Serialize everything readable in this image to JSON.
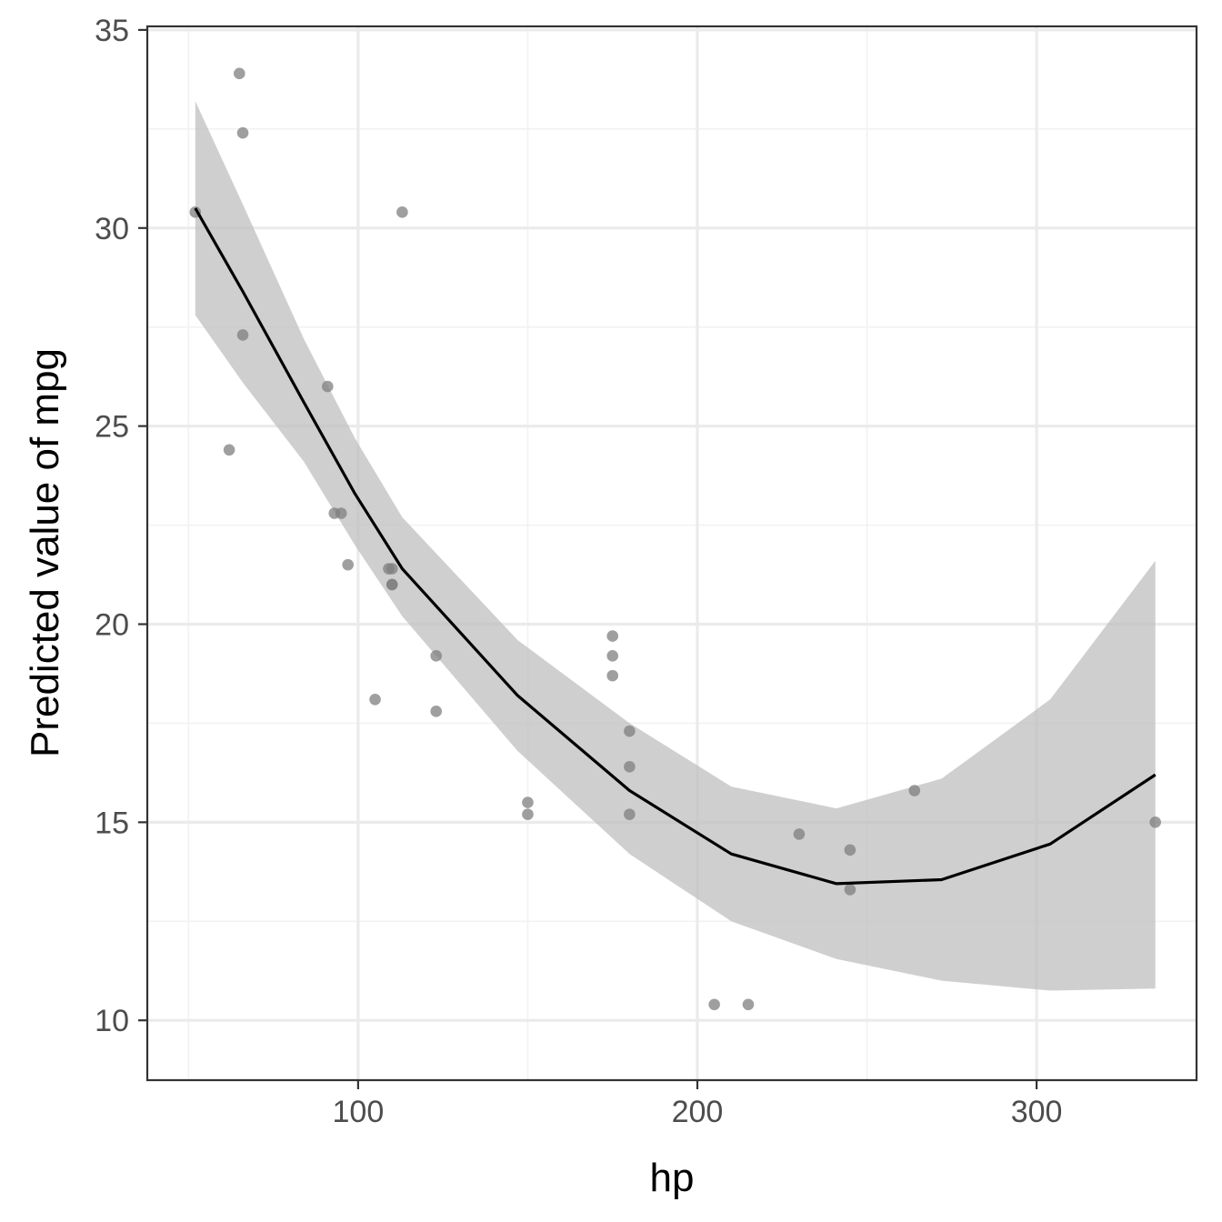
{
  "chart_data": {
    "type": "line",
    "title": "",
    "xlabel": "hp",
    "ylabel": "Predicted value of mpg",
    "xlim": [
      37.85,
      347.15
    ],
    "ylim": [
      8.49,
      35.09
    ],
    "x_ticks": [
      100,
      200,
      300
    ],
    "x_tick_labels": [
      "100",
      "200",
      "300"
    ],
    "x_minor_ticks": [
      50,
      150,
      250
    ],
    "y_ticks": [
      10,
      15,
      20,
      25,
      30,
      35
    ],
    "y_tick_labels": [
      "10",
      "15",
      "20",
      "25",
      "30",
      "35"
    ],
    "y_minor_ticks": [
      12.5,
      17.5,
      22.5,
      27.5,
      32.5
    ],
    "grid": true,
    "legend": "none",
    "colors": {
      "line": "#000000",
      "ribbon": "#bdbdbd",
      "points": "#7f7f7f",
      "grid_major": "#ebebeb",
      "grid_minor": "#f2f2f2",
      "panel_border": "#333333"
    },
    "series": [
      {
        "type": "line",
        "x": [
          52,
          66,
          84,
          99,
          113,
          147,
          180,
          210,
          241,
          272,
          304,
          335
        ],
        "y": [
          30.5,
          28.4,
          25.6,
          23.3,
          21.4,
          18.2,
          15.8,
          14.2,
          13.45,
          13.55,
          14.45,
          16.2
        ]
      },
      {
        "type": "ribbon",
        "x": [
          52,
          66,
          84,
          99,
          113,
          147,
          180,
          210,
          241,
          272,
          304,
          335
        ],
        "ymin": [
          27.8,
          26.1,
          24.1,
          22.0,
          20.2,
          16.8,
          14.2,
          12.5,
          11.55,
          11.0,
          10.75,
          10.8
        ],
        "ymax": [
          33.2,
          30.6,
          27.2,
          24.7,
          22.7,
          19.6,
          17.5,
          15.9,
          15.35,
          16.1,
          18.1,
          21.6
        ]
      },
      {
        "type": "scatter",
        "x": [
          52,
          62,
          65,
          66,
          66,
          91,
          93,
          95,
          97,
          105,
          109,
          110,
          110,
          110,
          113,
          123,
          123,
          150,
          150,
          175,
          175,
          175,
          180,
          180,
          180,
          205,
          215,
          230,
          245,
          245,
          264,
          335
        ],
        "y": [
          30.4,
          24.4,
          33.9,
          32.4,
          27.3,
          26.0,
          22.8,
          22.8,
          21.5,
          18.1,
          21.4,
          21.0,
          21.0,
          21.4,
          30.4,
          19.2,
          17.8,
          15.5,
          15.2,
          19.2,
          18.7,
          19.7,
          16.4,
          17.3,
          15.2,
          10.4,
          10.4,
          14.7,
          13.3,
          14.3,
          15.8,
          15.0
        ]
      }
    ]
  }
}
